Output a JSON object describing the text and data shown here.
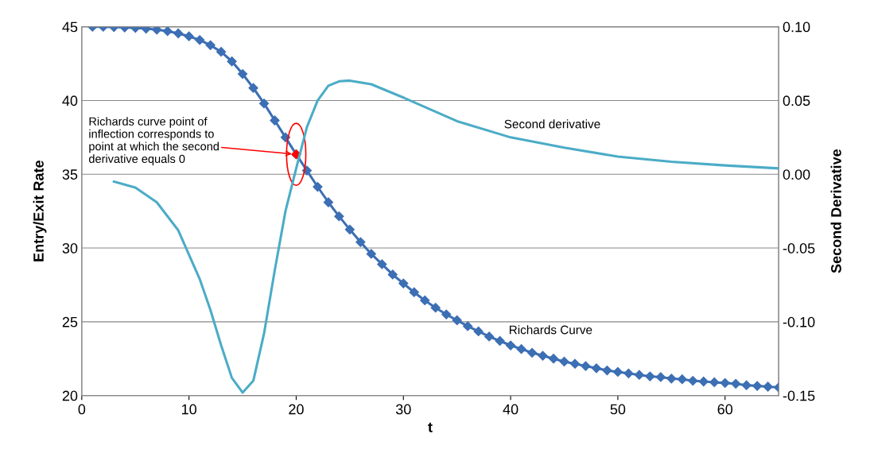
{
  "chart_data": {
    "type": "line",
    "xlabel": "t",
    "ylabel": "Entry/Exit Rate",
    "y2label": "Second Derivative",
    "xlim": [
      0,
      65
    ],
    "xticks": [
      0,
      10,
      20,
      30,
      40,
      50,
      60
    ],
    "ylim": [
      20,
      45
    ],
    "yticks": [
      20,
      25,
      30,
      35,
      40,
      45
    ],
    "y2lim": [
      -0.15,
      0.1
    ],
    "y2ticks": [
      {
        "value": -0.15,
        "label": "-0.15"
      },
      {
        "value": -0.1,
        "label": "-0.10"
      },
      {
        "value": -0.05,
        "label": "-0.05"
      },
      {
        "value": 0,
        "label": "0.00"
      },
      {
        "value": 0.05,
        "label": "0.05"
      },
      {
        "value": 0.1,
        "label": "0.10"
      }
    ],
    "grid": "y",
    "legend": false,
    "series": [
      {
        "name": "Richards Curve",
        "color": "#3c6fb4",
        "marker": "diamond",
        "x": [
          1,
          2,
          3,
          4,
          5,
          6,
          7,
          8,
          9,
          10,
          11,
          12,
          13,
          14,
          15,
          16,
          17,
          18,
          19,
          20,
          21,
          22,
          23,
          24,
          25,
          26,
          27,
          28,
          29,
          30,
          31,
          32,
          33,
          34,
          35,
          36,
          37,
          38,
          39,
          40,
          41,
          42,
          43,
          44,
          45,
          46,
          47,
          48,
          49,
          50,
          51,
          52,
          53,
          54,
          55,
          56,
          57,
          58,
          59,
          60,
          61,
          62,
          63,
          64,
          65
        ],
        "values": [
          45.0,
          45.0,
          44.98,
          44.95,
          44.92,
          44.87,
          44.8,
          44.7,
          44.55,
          44.35,
          44.1,
          43.75,
          43.3,
          42.65,
          41.8,
          40.85,
          39.8,
          38.65,
          37.5,
          36.35,
          35.25,
          34.15,
          33.1,
          32.15,
          31.25,
          30.4,
          29.6,
          28.9,
          28.2,
          27.6,
          27.0,
          26.45,
          25.95,
          25.5,
          25.1,
          24.7,
          24.35,
          24.0,
          23.7,
          23.4,
          23.15,
          22.9,
          22.7,
          22.5,
          22.3,
          22.15,
          22.0,
          21.85,
          21.7,
          21.6,
          21.5,
          21.4,
          21.3,
          21.25,
          21.15,
          21.1,
          21.0,
          20.95,
          20.9,
          20.85,
          20.8,
          20.7,
          20.65,
          20.6,
          20.55
        ]
      },
      {
        "name": "Second derivative",
        "color": "#4bacc6",
        "marker": "none",
        "axis": "y2",
        "x": [
          3,
          5,
          7,
          9,
          11,
          12,
          13,
          14,
          15,
          16,
          17,
          18,
          19,
          20,
          21,
          22,
          23,
          24,
          25,
          27,
          30,
          35,
          40,
          45,
          50,
          55,
          60,
          65
        ],
        "values": [
          -0.005,
          -0.009,
          -0.019,
          -0.038,
          -0.071,
          -0.092,
          -0.116,
          -0.138,
          -0.148,
          -0.14,
          -0.108,
          -0.065,
          -0.025,
          0.004,
          0.032,
          0.05,
          0.06,
          0.063,
          0.0635,
          0.061,
          0.052,
          0.036,
          0.025,
          0.018,
          0.012,
          0.0085,
          0.006,
          0.004
        ]
      },
      {
        "type": "scatter",
        "color": "#ff0000",
        "marker": "diamond",
        "x": [
          20
        ],
        "values": [
          36.35
        ]
      }
    ],
    "annotations": [
      {
        "text": "Richards curve point of\ninflection corresponds to\npoint at which the second\nderivative equals 0",
        "x": 20,
        "y": 36.35
      }
    ]
  }
}
